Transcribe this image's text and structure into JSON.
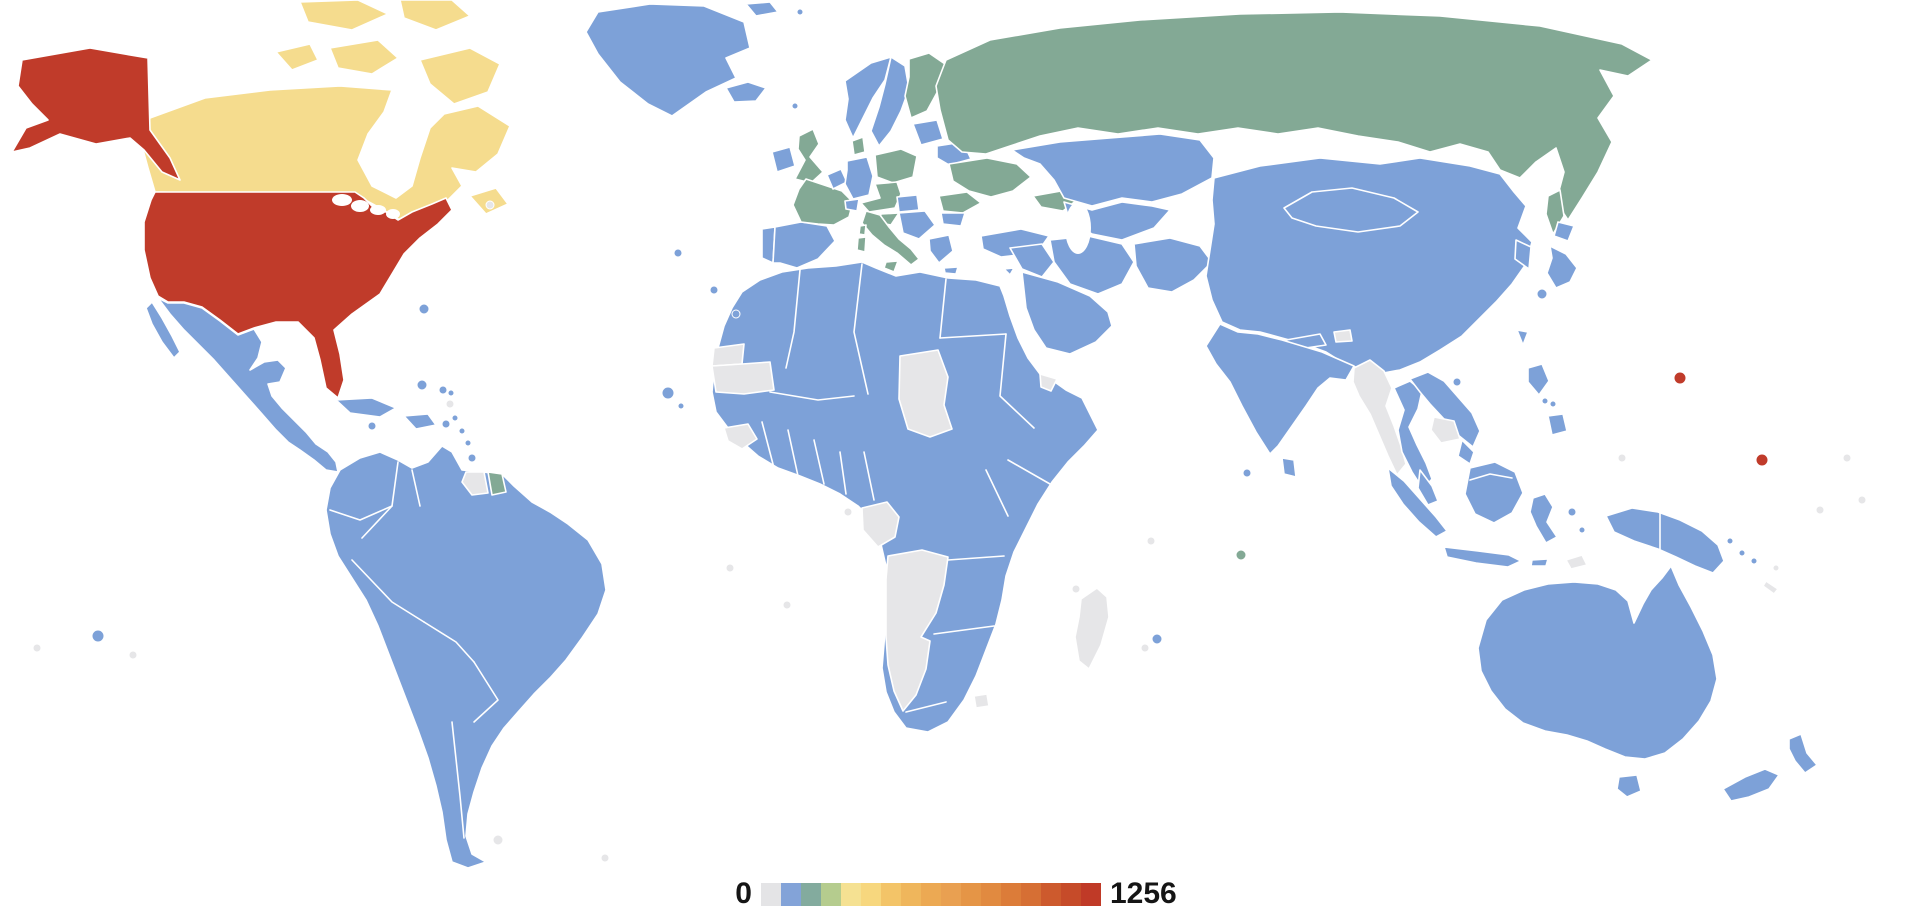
{
  "legend": {
    "min_label": "0",
    "max_label": "1256",
    "segments": [
      "#e4e4e6",
      "#83a3d8",
      "#83ab9e",
      "#b5cc8e",
      "#f5e192",
      "#f7d77e",
      "#f3c468",
      "#efb65c",
      "#eca953",
      "#e9a051",
      "#e59546",
      "#e18a40",
      "#dc7c39",
      "#d66f34",
      "#cd5a2d",
      "#c64b29",
      "#c03a27"
    ]
  },
  "chart_data": {
    "type": "choropleth",
    "scale_min": 0,
    "scale_max": 1256,
    "legend_position": "bottom-center",
    "no_data_color": "#e6e6e8"
  },
  "map": {
    "background": "#ffffff",
    "border_color": "#ffffff",
    "palette": {
      "no_data": "#e6e6e8",
      "blue": "#7da1d8",
      "green": "#83a995",
      "light_green": "#b5cc8e",
      "yellow": "#f5dc8e",
      "red": "#c03b2a"
    },
    "regions": {
      "greenland": "#7da1d8",
      "canada": "#f5dc8e",
      "alaska": "#c03b2a",
      "usa": "#c03b2a",
      "mexico": "#7da1d8",
      "central_america": "#7da1d8",
      "cuba": "#7da1d8",
      "hispaniola": "#7da1d8",
      "south_america": "#7da1d8",
      "suriname": "#e6e6e8",
      "french_guiana": "#83a995",
      "iceland": "#7da1d8",
      "ireland": "#7da1d8",
      "united_kingdom": "#83a995",
      "portugal": "#7da1d8",
      "spain": "#7da1d8",
      "france": "#83a995",
      "benelux": "#7da1d8",
      "germany": "#7da1d8",
      "denmark": "#83a995",
      "norway": "#7da1d8",
      "sweden": "#7da1d8",
      "finland": "#83a995",
      "baltics": "#7da1d8",
      "belarus": "#7da1d8",
      "poland": "#83a995",
      "czech_austria": "#83a995",
      "switzerland": "#7da1d8",
      "hungary": "#7da1d8",
      "ukraine": "#83a995",
      "romania": "#83a995",
      "balkans": "#7da1d8",
      "croatia": "#83a995",
      "bulgaria": "#7da1d8",
      "greece": "#7da1d8",
      "italy": "#83a995",
      "russia": "#83a995",
      "caucasus": "#83a995",
      "turkey": "#7da1d8",
      "kazakhstan": "#7da1d8",
      "central_asia": "#7da1d8",
      "iran": "#7da1d8",
      "middle_east": "#7da1d8",
      "arabia": "#7da1d8",
      "afghanistan_pakistan": "#7da1d8",
      "india": "#7da1d8",
      "nepal": "#7da1d8",
      "bhutan": "#e6e6e8",
      "sri_lanka": "#7da1d8",
      "china": "#7da1d8",
      "korea": "#7da1d8",
      "japan": "#7da1d8",
      "taiwan": "#7da1d8",
      "myanmar": "#e6e6e8",
      "thailand": "#7da1d8",
      "laos_vietnam": "#7da1d8",
      "cambodia": "#e6e6e8",
      "malaysia": "#7da1d8",
      "indonesia": "#7da1d8",
      "east_timor": "#e6e6e8",
      "philippines": "#7da1d8",
      "papua_new_guinea": "#7da1d8",
      "africa_general": "#7da1d8",
      "western_sahara": "#e6e6e8",
      "mauritania": "#e6e6e8",
      "guinea": "#e6e6e8",
      "chad": "#e6e6e8",
      "gabon_congo": "#e6e6e8",
      "angola_namibia": "#e6e6e8",
      "eritrea_djibouti": "#e6e6e8",
      "madagascar": "#e6e6e8",
      "lesotho": "#e6e6e8",
      "australia": "#7da1d8",
      "new_zealand": "#7da1d8",
      "islands_blue": "#7da1d8",
      "islands_gray": "#e6e6e8",
      "islands_red": "#c03b2a",
      "islands_green": "#83a995"
    }
  }
}
